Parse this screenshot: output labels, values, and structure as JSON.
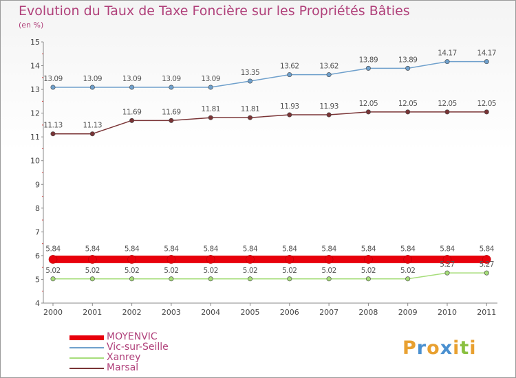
{
  "title": "Evolution du Taux de Taxe Foncière sur les Propriétés Bâties",
  "subtitle": "(en %)",
  "chart_data": {
    "type": "line",
    "title": "Evolution du Taux de Taxe Foncière sur les Propriétés Bâties",
    "ylabel": "(en %)",
    "xlabel": "",
    "categories": [
      "2000",
      "2001",
      "2002",
      "2003",
      "2004",
      "2005",
      "2006",
      "2007",
      "2008",
      "2009",
      "2010",
      "2011"
    ],
    "ylim": [
      4,
      15
    ],
    "yticks": [
      4,
      5,
      6,
      7,
      8,
      9,
      10,
      11,
      12,
      13,
      14,
      15
    ],
    "grid": false,
    "legend_position": "bottom-left",
    "series": [
      {
        "name": "MOYENVIC",
        "color": "#e8000b",
        "values": [
          5.84,
          5.84,
          5.84,
          5.84,
          5.84,
          5.84,
          5.84,
          5.84,
          5.84,
          5.84,
          5.84,
          5.84
        ],
        "labels": [
          "5.84",
          "5.84",
          "5.84",
          "5.84",
          "5.84",
          "5.84",
          "5.84",
          "5.84",
          "5.84",
          "5.84",
          "5.84",
          "5.84"
        ]
      },
      {
        "name": "Vic-sur-Seille",
        "color": "#6fa0cc",
        "values": [
          13.09,
          13.09,
          13.09,
          13.09,
          13.09,
          13.35,
          13.62,
          13.62,
          13.89,
          13.89,
          14.17,
          14.17
        ],
        "labels": [
          "13.09",
          "13.09",
          "13.09",
          "13.09",
          "13.09",
          "13.35",
          "13.62",
          "13.62",
          "13.89",
          "13.89",
          "14.17",
          "14.17"
        ]
      },
      {
        "name": "Xanrey",
        "color": "#a6dd7a",
        "values": [
          5.02,
          5.02,
          5.02,
          5.02,
          5.02,
          5.02,
          5.02,
          5.02,
          5.02,
          5.02,
          5.27,
          5.27
        ],
        "labels": [
          "5.02",
          "5.02",
          "5.02",
          "5.02",
          "5.02",
          "5.02",
          "5.02",
          "5.02",
          "5.02",
          "5.02",
          "5.27",
          "5.27"
        ]
      },
      {
        "name": "Marsal",
        "color": "#7a3436",
        "values": [
          11.13,
          11.13,
          11.69,
          11.69,
          11.81,
          11.81,
          11.93,
          11.93,
          12.05,
          12.05,
          12.05,
          12.05
        ],
        "labels": [
          "11.13",
          "11.13",
          "11.69",
          "11.69",
          "11.81",
          "11.81",
          "11.93",
          "11.93",
          "12.05",
          "12.05",
          "12.05",
          "12.05"
        ]
      }
    ]
  },
  "legend": {
    "items": [
      "MOYENVIC",
      "Vic-sur-Seille",
      "Xanrey",
      "Marsal"
    ]
  },
  "logo": {
    "text": "Proxiti",
    "colors": [
      "#e8a030",
      "#4a90d0",
      "#e8a030",
      "#4a90d0",
      "#e8a030",
      "#8ac040",
      "#e8a030"
    ]
  }
}
